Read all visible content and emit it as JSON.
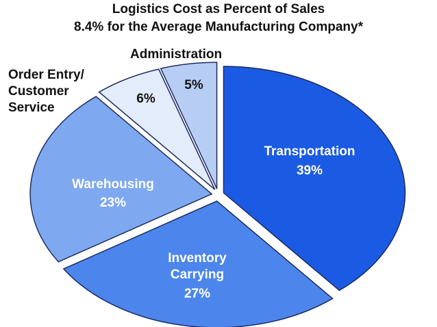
{
  "chart_data": {
    "type": "pie",
    "title": "Logistics Cost as Percent of Sales",
    "subtitle": "8.4% for the Average Manufacturing Company*",
    "categories": [
      "Transportation",
      "Inventory\nCarrying",
      "Warehousing",
      "Order Entry/\nCustomer\nService",
      "Administration"
    ],
    "values": [
      39,
      27,
      23,
      6,
      5
    ],
    "value_labels": [
      "39%",
      "27%",
      "23%",
      "6%",
      "5%"
    ],
    "colors": [
      "#1b5be3",
      "#4c86ec",
      "#7ea8f0",
      "#e3ecfb",
      "#b8cdf4"
    ]
  }
}
